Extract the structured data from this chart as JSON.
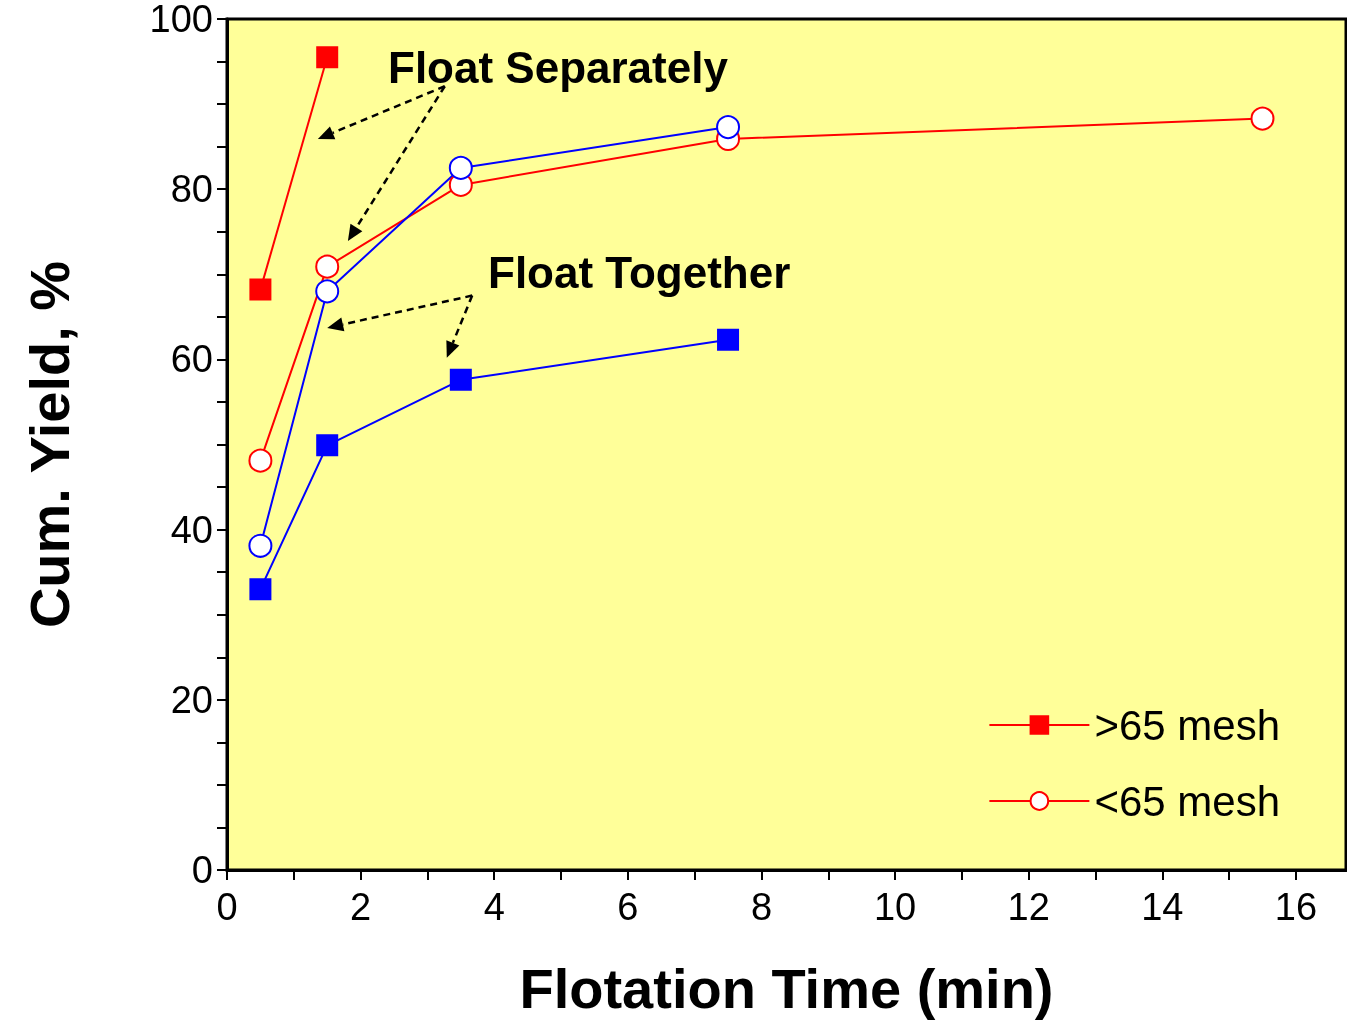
{
  "chart_data": {
    "type": "line",
    "xlabel": "Flotation Time (min)",
    "ylabel": "Cum. Yield, %",
    "xlim": [
      0,
      16.75
    ],
    "ylim": [
      0,
      100
    ],
    "xticks": [
      0,
      {
        "value": 1,
        "label": null
      },
      2,
      {
        "value": 3,
        "label": null
      },
      4,
      {
        "value": 5,
        "label": null
      },
      6,
      {
        "value": 7,
        "label": null
      },
      8,
      {
        "value": 9,
        "label": null
      },
      10,
      {
        "value": 11,
        "label": null
      },
      12,
      {
        "value": 13,
        "label": null
      },
      14,
      {
        "value": 15,
        "label": null
      },
      16
    ],
    "yticks": [
      0,
      {
        "value": 5,
        "label": null
      },
      {
        "value": 10,
        "label": null
      },
      {
        "value": 15,
        "label": null
      },
      20,
      {
        "value": 25,
        "label": null
      },
      {
        "value": 30,
        "label": null
      },
      {
        "value": 35,
        "label": null
      },
      40,
      {
        "value": 45,
        "label": null
      },
      {
        "value": 50,
        "label": null
      },
      {
        "value": 55,
        "label": null
      },
      60,
      {
        "value": 65,
        "label": null
      },
      {
        "value": 70,
        "label": null
      },
      {
        "value": 75,
        "label": null
      },
      80,
      {
        "value": 85,
        "label": null
      },
      {
        "value": 90,
        "label": null
      },
      {
        "value": 95,
        "label": null
      },
      100
    ],
    "grid": false,
    "legend": "bottom right",
    "line_style": "solid",
    "annotations": [
      "Float Separately",
      "Float Together"
    ],
    "series": [
      {
        "name": ">65 mesh",
        "color": "#ff0000",
        "marker": "square",
        "x": [
          0.5,
          1.5
        ],
        "values": [
          68.2,
          95.5
        ]
      },
      {
        "name": "<65 mesh",
        "color": "#ff0000",
        "marker": "circle",
        "x": [
          0.5,
          1.5,
          3.5,
          7.5,
          15.5
        ],
        "values": [
          48.1,
          70.9,
          80.5,
          85.9,
          88.3
        ]
      },
      {
        "color": "#0000ff",
        "marker": "circle",
        "x": [
          0.5,
          1.5,
          3.5,
          7.5
        ],
        "values": [
          38.1,
          68.0,
          82.5,
          87.3
        ]
      },
      {
        "color": "#0000ff",
        "marker": "square",
        "x": [
          0.5,
          1.5,
          3.5,
          7.5
        ],
        "values": [
          33.0,
          49.9,
          57.6,
          62.3
        ]
      }
    ]
  }
}
